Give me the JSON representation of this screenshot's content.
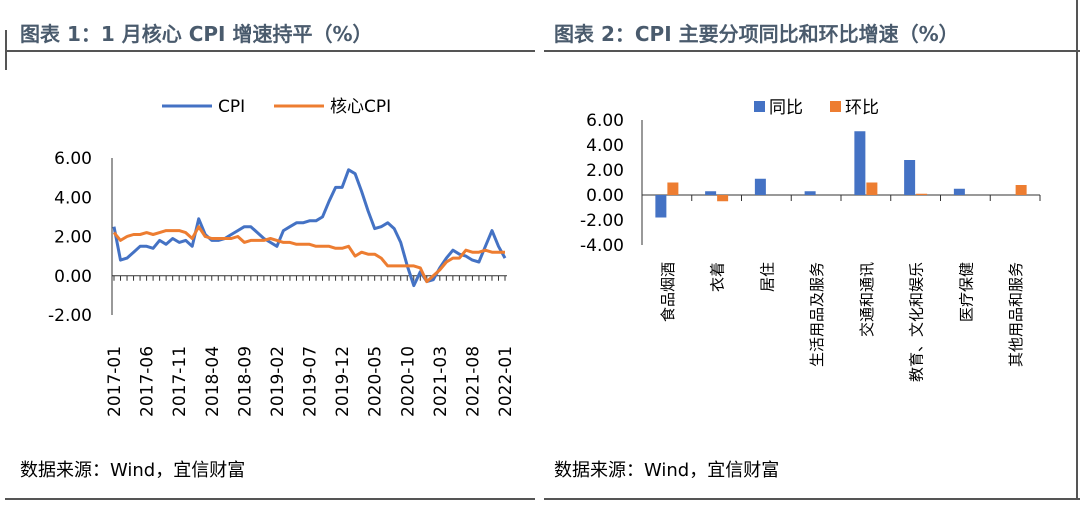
{
  "colors": {
    "blue": "#4472c4",
    "orange": "#ed7d31",
    "title": "#4a5b6d"
  },
  "left": {
    "title": "图表 1：1 月核心 CPI 增速持平（%）",
    "source": "数据来源：Wind，宜信财富"
  },
  "right": {
    "title": "图表 2：CPI 主要分项同比和环比增速（%）",
    "source": "数据来源：Wind，宜信财富"
  },
  "chart_data": [
    {
      "type": "line",
      "title": "图表 1：1 月核心 CPI 增速持平（%）",
      "x_start": "2017-01",
      "x_labels": [
        "2017-01",
        "2017-06",
        "2017-11",
        "2018-04",
        "2018-09",
        "2019-02",
        "2019-07",
        "2019-12",
        "2020-05",
        "2020-10",
        "2021-03",
        "2021-08",
        "2022-01"
      ],
      "y_ticks": [
        "6.00",
        "4.00",
        "2.00",
        "0.00",
        "-2.00"
      ],
      "ylim": [
        -2,
        6
      ],
      "legend_position": "top",
      "grid": false,
      "series": [
        {
          "name": "CPI",
          "color": "#4472c4",
          "values": [
            2.5,
            0.8,
            0.9,
            1.2,
            1.5,
            1.5,
            1.4,
            1.8,
            1.6,
            1.9,
            1.7,
            1.8,
            1.5,
            2.9,
            2.1,
            1.8,
            1.8,
            1.9,
            2.1,
            2.3,
            2.5,
            2.5,
            2.2,
            1.9,
            1.7,
            1.5,
            2.3,
            2.5,
            2.7,
            2.7,
            2.8,
            2.8,
            3.0,
            3.8,
            4.5,
            4.5,
            5.4,
            5.2,
            4.3,
            3.3,
            2.4,
            2.5,
            2.7,
            2.4,
            1.7,
            0.5,
            -0.5,
            0.2,
            -0.3,
            -0.2,
            0.4,
            0.9,
            1.3,
            1.1,
            1.0,
            0.8,
            0.7,
            1.5,
            2.3,
            1.5,
            0.9
          ]
        },
        {
          "name": "核心CPI",
          "color": "#ed7d31",
          "values": [
            2.2,
            1.8,
            2.0,
            2.1,
            2.1,
            2.2,
            2.1,
            2.2,
            2.3,
            2.3,
            2.3,
            2.2,
            1.9,
            2.5,
            2.0,
            1.9,
            1.9,
            1.9,
            1.9,
            2.0,
            1.7,
            1.8,
            1.8,
            1.8,
            1.9,
            1.8,
            1.7,
            1.7,
            1.6,
            1.6,
            1.6,
            1.5,
            1.5,
            1.5,
            1.4,
            1.4,
            1.5,
            1.0,
            1.2,
            1.1,
            1.1,
            0.9,
            0.5,
            0.5,
            0.5,
            0.5,
            0.5,
            0.4,
            -0.3,
            0.0,
            0.3,
            0.7,
            0.9,
            0.9,
            1.3,
            1.2,
            1.2,
            1.3,
            1.2,
            1.2,
            1.2
          ]
        }
      ]
    },
    {
      "type": "bar",
      "title": "图表 2：CPI 主要分项同比和环比增速（%）",
      "categories": [
        "食品烟酒",
        "衣着",
        "居住",
        "生活用品及服务",
        "交通和通讯",
        "教育、文化和娱乐",
        "医疗保健",
        "其他用品和服务"
      ],
      "y_ticks": [
        "6.00",
        "4.00",
        "2.00",
        "0.00",
        "-2.00",
        "-4.00"
      ],
      "ylim": [
        -4,
        6
      ],
      "legend_position": "top",
      "grid": false,
      "series": [
        {
          "name": "同比",
          "color": "#4472c4",
          "values": [
            -1.8,
            0.3,
            1.3,
            0.3,
            5.1,
            2.8,
            0.5,
            0.0
          ]
        },
        {
          "name": "环比",
          "color": "#ed7d31",
          "values": [
            1.0,
            -0.5,
            0.0,
            0.0,
            1.0,
            0.1,
            0.0,
            0.8
          ]
        }
      ]
    }
  ]
}
